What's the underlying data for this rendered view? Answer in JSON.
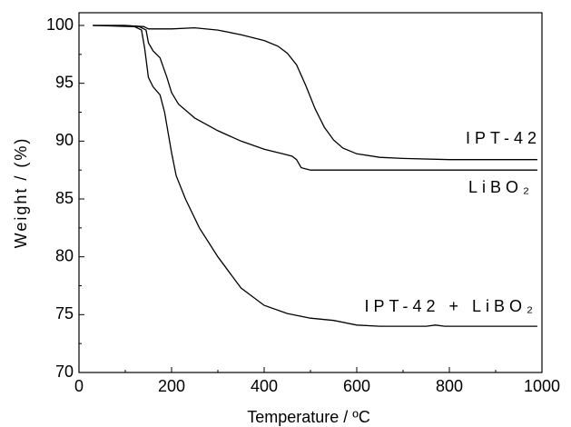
{
  "chart_data": {
    "type": "line",
    "x_label": "Temperature / ºC",
    "y_label": "Weight / (%)",
    "xlim": [
      0,
      1000
    ],
    "xticks": [
      0,
      200,
      400,
      600,
      800,
      1000
    ],
    "x_minor_ticks": [
      100,
      300,
      500,
      700,
      900
    ],
    "ylim": [
      70,
      101.1
    ],
    "yticks": [
      70,
      75,
      80,
      85,
      90,
      95,
      100
    ],
    "y_minor_ticks": [
      72.5,
      77.5,
      82.5,
      87.5,
      92.5,
      97.5
    ],
    "series": [
      {
        "name": "IPT-42",
        "color": "#000000",
        "x": [
          30,
          100,
          140,
          150,
          200,
          250,
          300,
          350,
          400,
          430,
          450,
          470,
          490,
          510,
          530,
          550,
          570,
          600,
          650,
          700,
          800,
          990
        ],
        "values": [
          100,
          100,
          99.9,
          99.7,
          99.7,
          99.8,
          99.6,
          99.2,
          98.7,
          98.2,
          97.6,
          96.6,
          94.8,
          92.8,
          91.2,
          90.1,
          89.4,
          88.9,
          88.6,
          88.5,
          88.4,
          88.4
        ]
      },
      {
        "name": "LiBO₂",
        "color": "#000000",
        "x": [
          30,
          100,
          130,
          145,
          150,
          160,
          175,
          190,
          200,
          215,
          250,
          300,
          350,
          400,
          440,
          460,
          470,
          480,
          500,
          600,
          990
        ],
        "values": [
          100,
          100,
          99.9,
          99.6,
          98.5,
          97.8,
          97.2,
          95.5,
          94.2,
          93.2,
          92.0,
          90.9,
          90.0,
          89.3,
          88.9,
          88.7,
          88.4,
          87.7,
          87.5,
          87.5,
          87.5
        ]
      },
      {
        "name": "IPT-42 + LiBO₂",
        "color": "#000000",
        "x": [
          30,
          120,
          135,
          142,
          150,
          160,
          175,
          185,
          200,
          210,
          230,
          260,
          300,
          350,
          400,
          450,
          500,
          550,
          600,
          650,
          750,
          770,
          790,
          990
        ],
        "values": [
          100,
          99.9,
          99.6,
          98,
          95.5,
          94.7,
          94,
          92.5,
          89,
          87,
          85,
          82.5,
          80,
          77.3,
          75.8,
          75.1,
          74.7,
          74.5,
          74.1,
          74.0,
          74.0,
          74.1,
          74.0,
          74.0
        ]
      }
    ]
  }
}
